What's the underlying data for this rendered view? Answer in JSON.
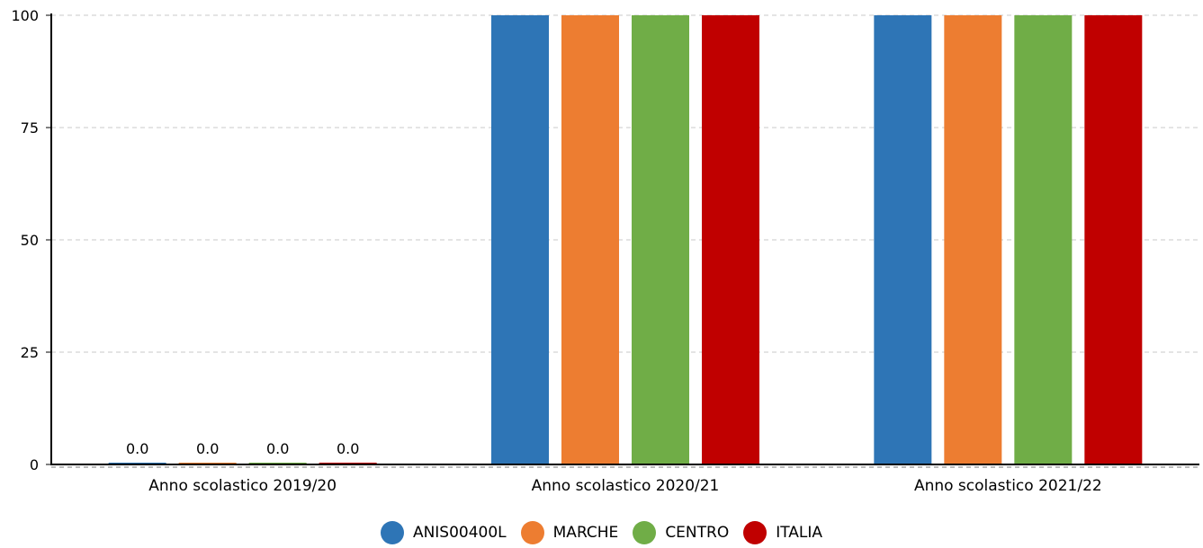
{
  "chart_data": {
    "type": "bar",
    "categories": [
      "Anno scolastico 2019/20",
      "Anno scolastico 2020/21",
      "Anno scolastico 2021/22"
    ],
    "series": [
      {
        "name": "ANIS00400L",
        "color": "#2e75b6",
        "values": [
          0.0,
          100,
          100
        ]
      },
      {
        "name": "MARCHE",
        "color": "#ed7d31",
        "values": [
          0.0,
          100,
          100
        ]
      },
      {
        "name": "CENTRO",
        "color": "#70ad47",
        "values": [
          0.0,
          100,
          100
        ]
      },
      {
        "name": "ITALIA",
        "color": "#c00000",
        "values": [
          0.0,
          100,
          100
        ]
      }
    ],
    "data_labels": [
      [
        "0.0",
        "0.0",
        "0.0",
        "0.0"
      ],
      [
        "",
        "",
        "",
        ""
      ],
      [
        "",
        "",
        "",
        ""
      ]
    ],
    "yticks": [
      "0",
      "25",
      "50",
      "75",
      "100"
    ],
    "ylim": [
      0,
      100
    ],
    "grid": true,
    "legend_position": "bottom-center"
  }
}
